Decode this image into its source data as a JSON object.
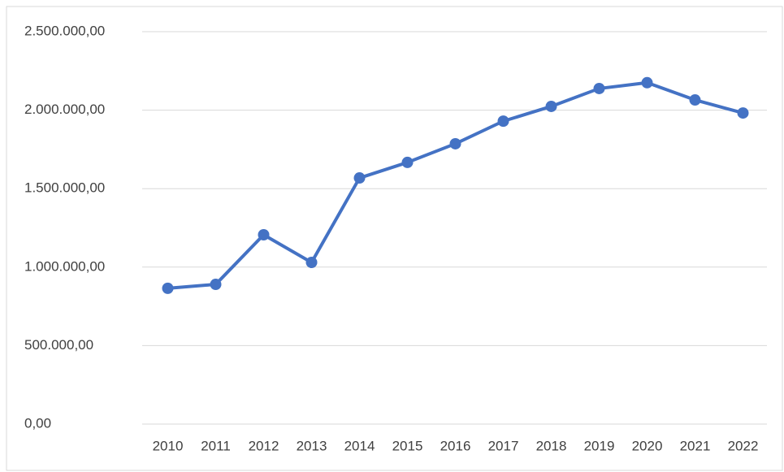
{
  "chart_data": {
    "type": "line",
    "categories": [
      "2010",
      "2011",
      "2012",
      "2013",
      "2014",
      "2015",
      "2016",
      "2017",
      "2018",
      "2019",
      "2020",
      "2021",
      "2022"
    ],
    "values": [
      865000,
      890000,
      1206000,
      1030000,
      1568000,
      1667000,
      1786000,
      1930000,
      2024000,
      2138000,
      2175000,
      2065000,
      1982000
    ],
    "color": "#4472c4",
    "ylim": [
      0,
      2500000
    ],
    "yticks": [
      {
        "value": 0,
        "label": "0,00"
      },
      {
        "value": 500000,
        "label": "500.000,00"
      },
      {
        "value": 1000000,
        "label": "1.000.000,00"
      },
      {
        "value": 1500000,
        "label": "1.500.000,00"
      },
      {
        "value": 2000000,
        "label": "2.000.000,00"
      },
      {
        "value": 2500000,
        "label": "2.500.000,00"
      }
    ],
    "grid": true
  }
}
